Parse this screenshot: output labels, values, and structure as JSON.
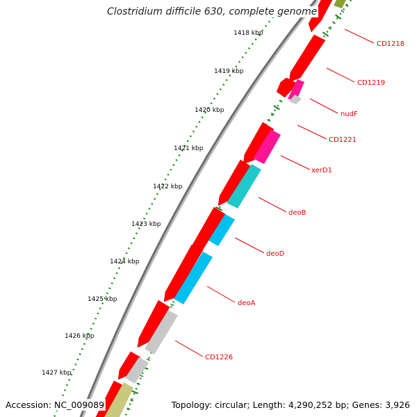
{
  "title": "Clostridium difficile 630, complete genome",
  "accession": "Accession: NC_009089",
  "summary": "Topology: circular; Length: 4,290,252 bp; Genes: 3,926",
  "colors": {
    "backbone": "#777777",
    "cds": "#ff0000",
    "trna_gray": "#c8c8c8",
    "magenta": "#ff1493",
    "teal": "#20c8c8",
    "cyan": "#00c0f0",
    "olive": "#c8c880",
    "olive_dark": "#8aa030",
    "tick_dots": "#1a8a1a",
    "label_red": "#e00000"
  },
  "kbp_labels": [
    "1418 kbp",
    "1419 kbp",
    "1420 kbp",
    "1421 kbp",
    "1422 kbp",
    "1423 kbp",
    "1424 kbp",
    "1425 kbp",
    "1426 kbp",
    "1427 kbp"
  ],
  "gene_labels": [
    "CD1218",
    "CD1219",
    "nudF",
    "CD1221",
    "xerD1",
    "deoB",
    "deoD",
    "deoA",
    "CD1226"
  ]
}
